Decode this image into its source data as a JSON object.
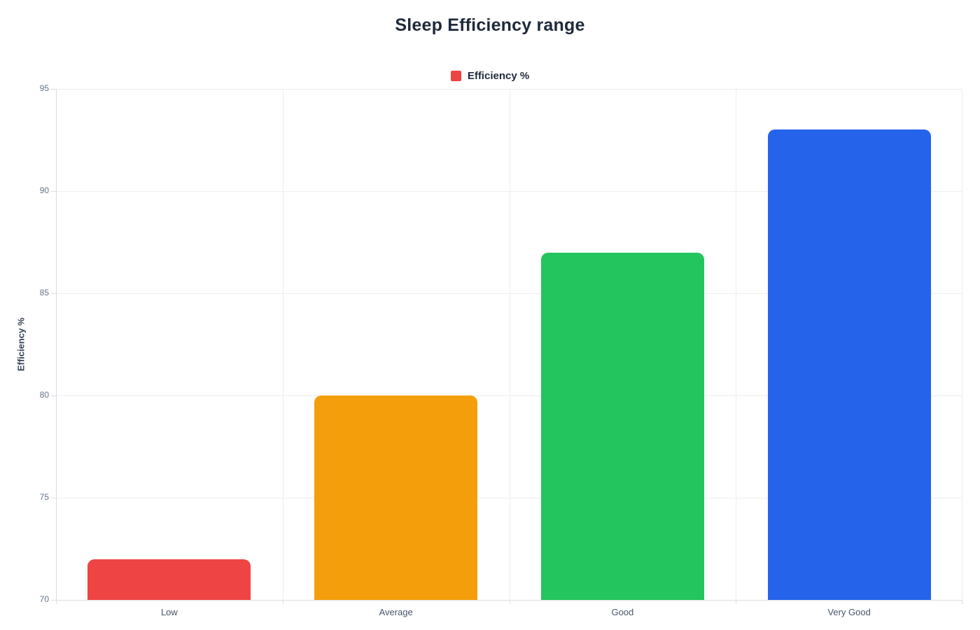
{
  "page": {
    "background": "#ffffff"
  },
  "chart_data": {
    "type": "bar",
    "title": "Sleep Efficiency range",
    "categories": [
      "Low",
      "Average",
      "Good",
      "Very Good"
    ],
    "series": [
      {
        "name": "Efficiency %",
        "values": [
          72,
          80,
          87,
          93
        ]
      }
    ],
    "colors": [
      "#EF4444",
      "#F59E0B",
      "#22C55E",
      "#2563EB"
    ],
    "xlabel": "",
    "ylabel": "Efficiency %",
    "ylim": [
      70,
      95
    ],
    "yticks": [
      70,
      75,
      80,
      85,
      90,
      95
    ],
    "grid": true,
    "bar_width_fraction": 0.72,
    "corner_radius": 10,
    "legend": {
      "position": "top",
      "items": [
        {
          "label": "Efficiency %",
          "color": "#EF4444"
        }
      ]
    }
  },
  "theme": {
    "title_color": "#1e293b",
    "legend_text_color": "#1e293b",
    "axis_title_color": "#334155",
    "ytick_text_color": "#64748b",
    "xcat_text_color": "#475569",
    "grid_color": "#ecedf1",
    "axis_color": "#d9dce1"
  }
}
